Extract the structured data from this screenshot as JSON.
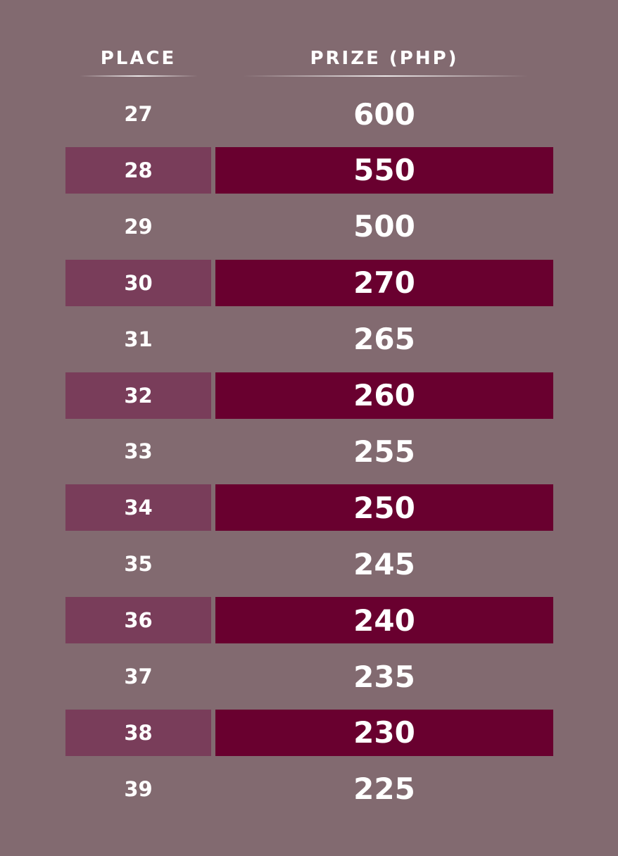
{
  "table": {
    "headers": [
      "PLACE",
      "PRIZE (PHP)"
    ],
    "rows": [
      [
        "27",
        "600"
      ],
      [
        "28",
        "550"
      ],
      [
        "29",
        "500"
      ],
      [
        "30",
        "270"
      ],
      [
        "31",
        "265"
      ],
      [
        "32",
        "260"
      ],
      [
        "33",
        "255"
      ],
      [
        "34",
        "250"
      ],
      [
        "35",
        "245"
      ],
      [
        "36",
        "240"
      ],
      [
        "37",
        "235"
      ],
      [
        "38",
        "230"
      ],
      [
        "39",
        "225"
      ]
    ]
  }
}
